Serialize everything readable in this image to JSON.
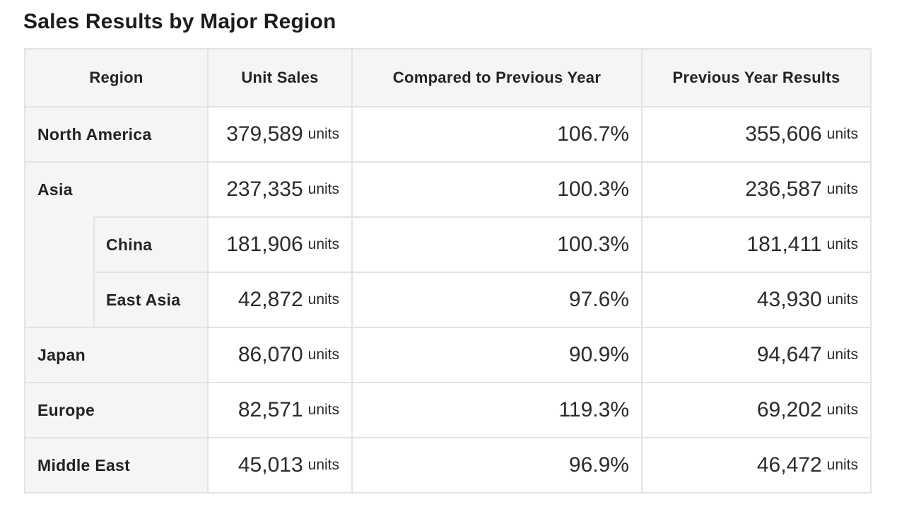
{
  "title": "Sales Results by Major Region",
  "colors": {
    "label_cell_bg": "#f5f5f5",
    "value_cell_bg": "#ffffff",
    "border": "#e3e3e3",
    "text": "#232323"
  },
  "chart_data": {
    "type": "table",
    "title": "Sales Results by Major Region",
    "columns": [
      "Region",
      "Unit Sales",
      "Compared to Previous Year",
      "Previous Year Results"
    ],
    "unit_suffix": "units",
    "rows": [
      {
        "region": "North America",
        "parent": null,
        "unit_sales": "379,589",
        "vs_prev_year": "106.7%",
        "prev_year": "355,606"
      },
      {
        "region": "Asia",
        "parent": null,
        "unit_sales": "237,335",
        "vs_prev_year": "100.3%",
        "prev_year": "236,587"
      },
      {
        "region": "China",
        "parent": "Asia",
        "unit_sales": "181,906",
        "vs_prev_year": "100.3%",
        "prev_year": "181,411"
      },
      {
        "region": "East Asia",
        "parent": "Asia",
        "unit_sales": "42,872",
        "vs_prev_year": "97.6%",
        "prev_year": "43,930"
      },
      {
        "region": "Japan",
        "parent": null,
        "unit_sales": "86,070",
        "vs_prev_year": "90.9%",
        "prev_year": "94,647"
      },
      {
        "region": "Europe",
        "parent": null,
        "unit_sales": "82,571",
        "vs_prev_year": "119.3%",
        "prev_year": "69,202"
      },
      {
        "region": "Middle East",
        "parent": null,
        "unit_sales": "45,013",
        "vs_prev_year": "96.9%",
        "prev_year": "46,472"
      }
    ]
  }
}
